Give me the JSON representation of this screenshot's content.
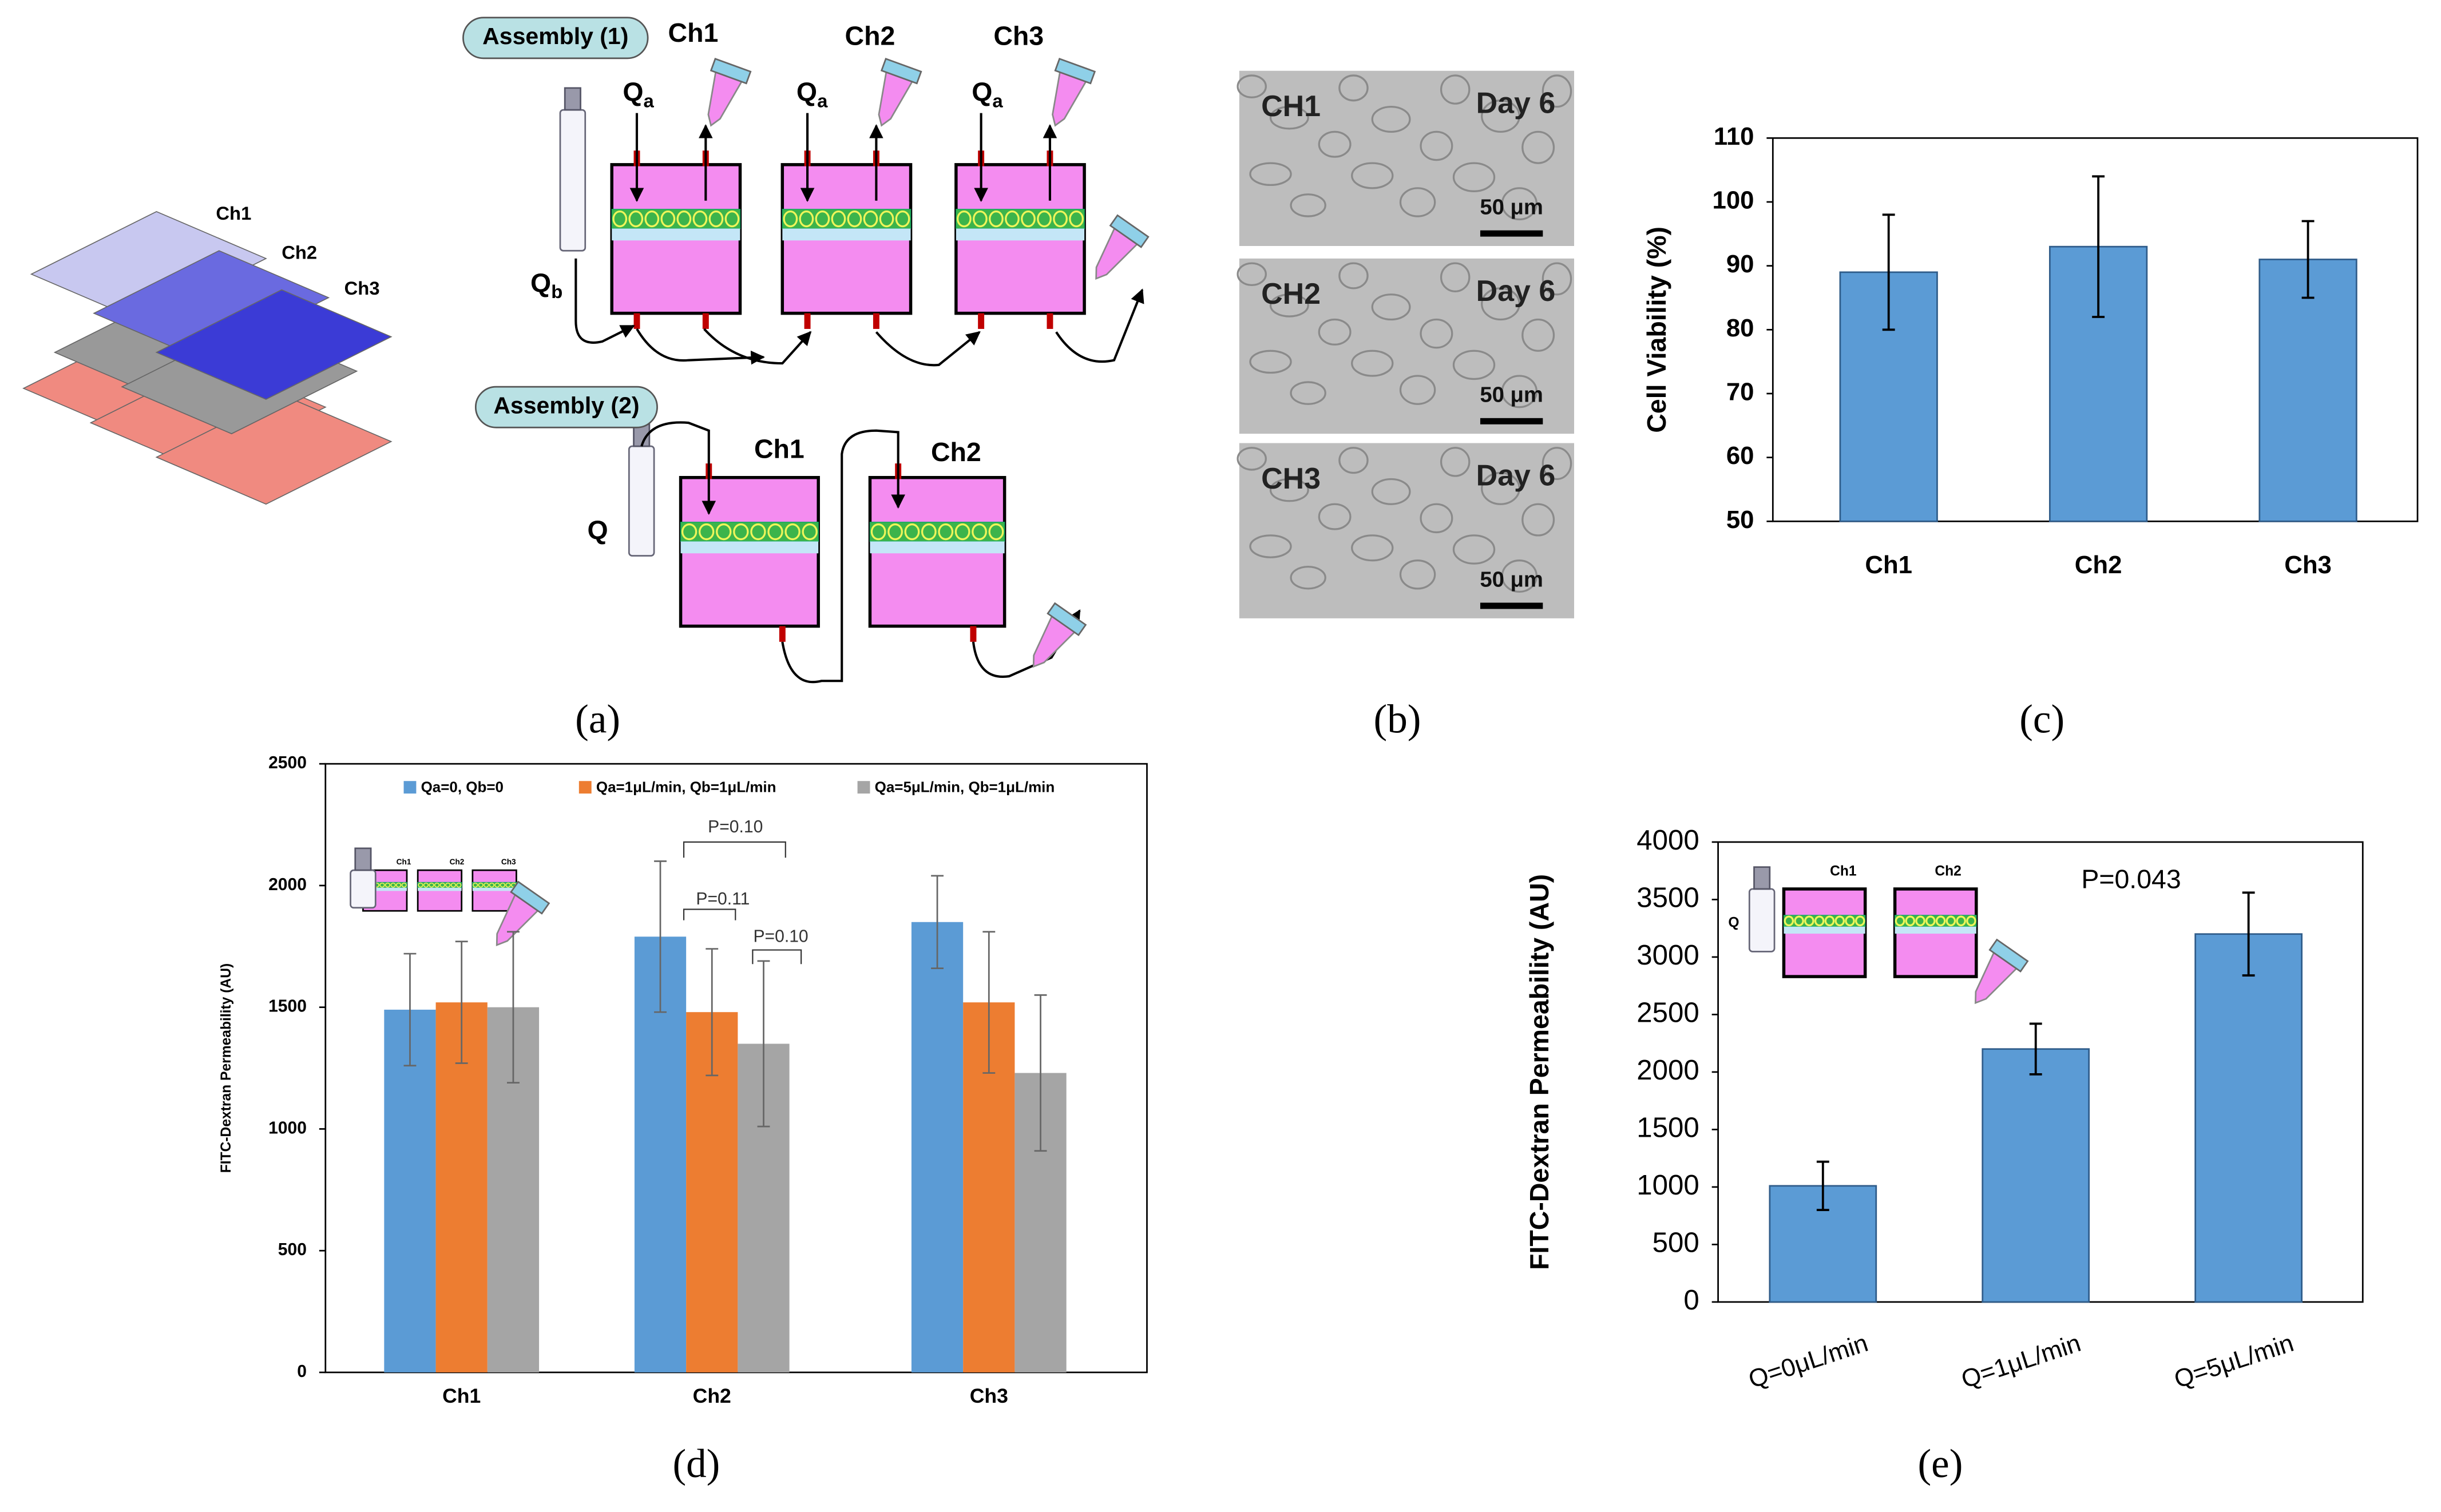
{
  "figure": {
    "panel_labels": [
      "(a)",
      "(b)",
      "(c)",
      "(d)",
      "(e)"
    ],
    "exploded_labels": [
      "Ch1",
      "Ch2",
      "Ch3"
    ],
    "assembly1": {
      "title": "Assembly (1)",
      "channels": [
        "Ch1",
        "Ch2",
        "Ch3"
      ],
      "flow_symbol": "Q",
      "flow_a_sub": "a",
      "flow_b_sub": "b"
    },
    "assembly2": {
      "title": "Assembly (2)",
      "channels": [
        "Ch1",
        "Ch2"
      ],
      "flow": "Q"
    },
    "micrographs": [
      {
        "channel": "CH1",
        "day": "Day 6",
        "scale": "50 μm"
      },
      {
        "channel": "CH2",
        "day": "Day 6",
        "scale": "50 μm"
      },
      {
        "channel": "CH3",
        "day": "Day 6",
        "scale": "50 μm"
      }
    ]
  },
  "chart_data": [
    {
      "type": "bar",
      "ylabel": "Cell Viability (%)",
      "categories": [
        "Ch1",
        "Ch2",
        "Ch3"
      ],
      "values": [
        89,
        93,
        91
      ],
      "errors": [
        9,
        11,
        6
      ],
      "color": "#5b9bd5",
      "ylim": [
        50,
        110
      ],
      "yticks": [
        50,
        60,
        70,
        80,
        90,
        100,
        110
      ],
      "grid": false
    },
    {
      "type": "bar",
      "ylabel": "FITC-Dextran Permeability (AU)",
      "categories": [
        "Ch1",
        "Ch2",
        "Ch3"
      ],
      "series": [
        {
          "name": "Qa=0, Qb=0",
          "color": "#5b9bd5",
          "values": [
            1490,
            1790,
            1850
          ],
          "errors": [
            230,
            310,
            190
          ]
        },
        {
          "name": "Qa=1μL/min, Qb=1μL/min",
          "color": "#ed7d31",
          "values": [
            1520,
            1480,
            1520
          ],
          "errors": [
            250,
            260,
            290
          ]
        },
        {
          "name": "Qa=5μL/min, Qb=1μL/min",
          "color": "#a5a5a5",
          "values": [
            1500,
            1350,
            1230
          ],
          "errors": [
            310,
            340,
            320
          ]
        }
      ],
      "ylim": [
        0,
        2500
      ],
      "yticks": [
        0,
        500,
        1000,
        1500,
        2000,
        2500
      ],
      "grid": false,
      "legend": "top",
      "annotations": [
        "P=0.10",
        "P=0.11",
        "P=0.10"
      ],
      "inset_labels": [
        "Ch1",
        "Ch2",
        "Ch3"
      ]
    },
    {
      "type": "bar",
      "ylabel": "FITC-Dextran Permeability (AU)",
      "categories": [
        "Q=0μL/min",
        "Q=1μL/min",
        "Q=5μL/min"
      ],
      "values": [
        1010,
        2200,
        3200
      ],
      "errors": [
        210,
        220,
        360
      ],
      "color": "#5b9bd5",
      "ylim": [
        0,
        4000
      ],
      "yticks": [
        0,
        500,
        1000,
        1500,
        2000,
        2500,
        3000,
        3500,
        4000
      ],
      "grid": false,
      "annotations": [
        "P=0.043"
      ],
      "inset_labels": [
        "Ch1",
        "Ch2",
        "Q"
      ]
    }
  ]
}
